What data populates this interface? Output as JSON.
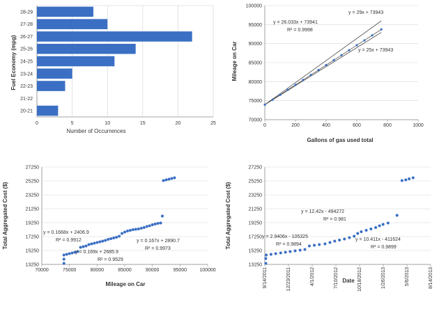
{
  "chart_data": [
    {
      "type": "bar",
      "orientation": "horizontal",
      "categories": [
        "20-21",
        "21-22",
        "22-23",
        "23-24",
        "24-25",
        "25-26",
        "26-27",
        "27-28",
        "28-29"
      ],
      "values": [
        3,
        0,
        4,
        5,
        11,
        14,
        22,
        10,
        8
      ],
      "xlabel": "Number of Occurrences",
      "ylabel": "Fuel Economy (mpg)",
      "xlim": [
        0,
        25
      ],
      "xticks": [
        0,
        5,
        10,
        15,
        20,
        25
      ],
      "xtick_labels": [
        "0",
        "5",
        "10",
        "15",
        "20",
        "25"
      ],
      "color": "#3a6fc4",
      "grid": true
    },
    {
      "type": "scatter",
      "xlabel": "Gallons of gas used total",
      "ylabel": "Mileage on Car",
      "xlim": [
        0,
        1000
      ],
      "ylim": [
        70000,
        100000
      ],
      "xticks": [
        0,
        200,
        400,
        600,
        800,
        1000
      ],
      "xtick_labels": [
        "0",
        "200",
        "400",
        "600",
        "800",
        "1000"
      ],
      "yticks": [
        70000,
        75000,
        80000,
        85000,
        90000,
        95000,
        100000
      ],
      "ytick_labels": [
        "70000",
        "75000",
        "80000",
        "85000",
        "90000",
        "95000",
        "100000"
      ],
      "series": [
        {
          "x": [
            0,
            50,
            100,
            150,
            200,
            250,
            300,
            350,
            400,
            450,
            500,
            550,
            600,
            650,
            700,
            760
          ],
          "y": [
            73943,
            75245,
            76546,
            77848,
            79150,
            80451,
            81753,
            83055,
            84356,
            85658,
            86960,
            88261,
            89563,
            90864,
            92166,
            93728
          ]
        }
      ],
      "lines": [
        {
          "x": [
            0,
            760
          ],
          "y": [
            73943,
            95983
          ],
          "label": "y = 29x + 73943"
        },
        {
          "x": [
            0,
            760
          ],
          "y": [
            73943,
            93728
          ],
          "label": "y = 26.033x + 73941"
        },
        {
          "x": [
            0,
            760
          ],
          "y": [
            73943,
            92943
          ],
          "label": "y = 25x + 73943"
        }
      ],
      "annotations": [
        "y = 29x + 73943",
        "y = 26.033x + 73941",
        "R² = 0.9998",
        "y = 25x + 73943"
      ],
      "color": "#3a6fc4",
      "grid": true
    },
    {
      "type": "scatter",
      "xlabel": "Mileage on Car",
      "ylabel": "Total Aggregated Cost ($)",
      "xlim": [
        70000,
        100000
      ],
      "ylim": [
        13250,
        27250
      ],
      "xticks": [
        70000,
        75000,
        80000,
        85000,
        90000,
        95000,
        100000
      ],
      "xtick_labels": [
        "70000",
        "75000",
        "80000",
        "85000",
        "90000",
        "95000",
        "100000"
      ],
      "yticks": [
        13250,
        15250,
        17250,
        19250,
        21250,
        23250,
        25250,
        27250
      ],
      "ytick_labels": [
        "13250",
        "15250",
        "17250",
        "19250",
        "21250",
        "23250",
        "25250",
        "27250"
      ],
      "series": [
        {
          "x": [
            74000,
            74000,
            74000,
            74500,
            75000,
            75500,
            76000,
            76500,
            77000,
            77500,
            78000,
            78500,
            79000,
            79500,
            80000,
            80500,
            81000,
            81500,
            82000,
            82500,
            83000,
            83500,
            84000,
            84500,
            85000,
            85500,
            86000,
            86500,
            87000,
            87500,
            88000,
            88500,
            89000,
            89500,
            90000,
            90500,
            91000,
            91500,
            91800,
            92000,
            92500,
            93000,
            93500,
            94000
          ],
          "y": [
            13400,
            14000,
            14600,
            14700,
            14800,
            14900,
            15000,
            15100,
            15700,
            15800,
            15900,
            16100,
            16200,
            16300,
            16400,
            16500,
            16600,
            16700,
            16850,
            16950,
            17050,
            17150,
            17300,
            17700,
            17900,
            18050,
            18150,
            18250,
            18300,
            18350,
            18450,
            18550,
            18700,
            18800,
            18950,
            19050,
            19150,
            19200,
            20200,
            25300,
            25400,
            25500,
            25600,
            25700
          ]
        }
      ],
      "annotations": [
        "y = 0.1668x + 2406.9",
        "R² = 0.9912",
        "y = 0.167x + 2890.7",
        "R² = 0.9973",
        "y = 0.169x + 2685.9",
        "R² = 0.9529"
      ],
      "color": "#3a6fc4",
      "grid": true
    },
    {
      "type": "scatter",
      "xlabel": "Date",
      "ylabel": "Total Aggregated Cost ($)",
      "xlim": [
        "2011-09-14",
        "2013-08-14"
      ],
      "ylim": [
        13250,
        27250
      ],
      "xticks": [
        "2011-09-14",
        "2011-12-23",
        "2012-04-01",
        "2012-07-10",
        "2012-10-18",
        "2013-01-26",
        "2013-05-06",
        "2013-08-14"
      ],
      "xtick_labels": [
        "9/14/2011",
        "12/23/2011",
        "4/1/2012",
        "7/10/2012",
        "10/18/2012",
        "1/26/2013",
        "5/6/2013",
        "8/14/2013"
      ],
      "yticks": [
        13250,
        15250,
        17250,
        19250,
        21250,
        23250,
        25250,
        27250
      ],
      "ytick_labels": [
        "13250",
        "15250",
        "17250",
        "19250",
        "21250",
        "23250",
        "25250",
        "27250"
      ],
      "series": [
        {
          "x": [
            "2011-09-18",
            "2011-09-18",
            "2011-09-20",
            "2011-10-10",
            "2011-10-30",
            "2011-11-20",
            "2011-12-10",
            "2011-12-30",
            "2012-01-20",
            "2012-02-10",
            "2012-03-01",
            "2012-03-20",
            "2012-04-10",
            "2012-05-01",
            "2012-05-25",
            "2012-06-15",
            "2012-07-05",
            "2012-07-25",
            "2012-08-15",
            "2012-09-05",
            "2012-09-25",
            "2012-10-10",
            "2012-10-25",
            "2012-11-15",
            "2012-12-05",
            "2012-12-25",
            "2013-01-10",
            "2013-01-25",
            "2013-02-15",
            "2013-03-25",
            "2013-04-15",
            "2013-05-01",
            "2013-05-15",
            "2013-06-01"
          ],
          "y": [
            13400,
            14100,
            14600,
            14700,
            14800,
            14900,
            15000,
            15100,
            15200,
            15300,
            15400,
            15900,
            16000,
            16100,
            16200,
            16400,
            16600,
            16750,
            16900,
            17100,
            17300,
            17700,
            17950,
            18150,
            18350,
            18550,
            18800,
            19000,
            19200,
            20300,
            25300,
            25400,
            25550,
            25700
          ]
        }
      ],
      "annotations": [
        "y = 12.42x - 494272",
        "R² = 0.981",
        "y = 2.9406x - 105325",
        "R² = 0.9894",
        "y = 10.411x - 411624",
        "R² = 0.9899"
      ],
      "color": "#3a6fc4",
      "grid": true
    }
  ]
}
